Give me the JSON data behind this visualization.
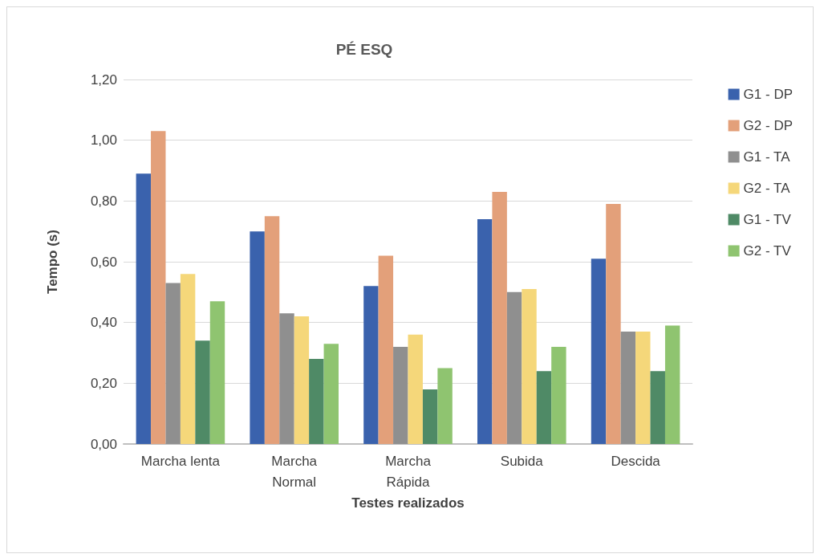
{
  "chart_data": {
    "type": "bar",
    "title": "PÉ ESQ",
    "xlabel": "Testes realizados",
    "ylabel": "Tempo (s)",
    "categories": [
      "Marcha lenta",
      "Marcha\nNormal",
      "Marcha\nRápida",
      "Subida",
      "Descida"
    ],
    "series": [
      {
        "name": "G1 - DP",
        "color": "#3a62ad",
        "values": [
          0.89,
          0.7,
          0.52,
          0.74,
          0.61
        ]
      },
      {
        "name": "G2 - DP",
        "color": "#e3a07a",
        "values": [
          1.03,
          0.75,
          0.62,
          0.83,
          0.79
        ]
      },
      {
        "name": "G1 - TA",
        "color": "#8f8f8f",
        "values": [
          0.53,
          0.43,
          0.32,
          0.5,
          0.37
        ]
      },
      {
        "name": "G2 - TA",
        "color": "#f5d77a",
        "values": [
          0.56,
          0.42,
          0.36,
          0.51,
          0.37
        ]
      },
      {
        "name": "G1 - TV",
        "color": "#4f8a66",
        "values": [
          0.34,
          0.28,
          0.18,
          0.24,
          0.24
        ]
      },
      {
        "name": "G2 - TV",
        "color": "#8fc470",
        "values": [
          0.47,
          0.33,
          0.25,
          0.32,
          0.39
        ]
      }
    ],
    "ylim": [
      0,
      1.2
    ],
    "yticks": [
      {
        "value": 0,
        "label": "0,00"
      },
      {
        "value": 0.2,
        "label": "0,20"
      },
      {
        "value": 0.4,
        "label": "0,40"
      },
      {
        "value": 0.6,
        "label": "0,60"
      },
      {
        "value": 0.8,
        "label": "0,80"
      },
      {
        "value": 1.0,
        "label": "1,00"
      },
      {
        "value": 1.2,
        "label": "1,20"
      }
    ],
    "grid": "y",
    "legend": "right"
  }
}
